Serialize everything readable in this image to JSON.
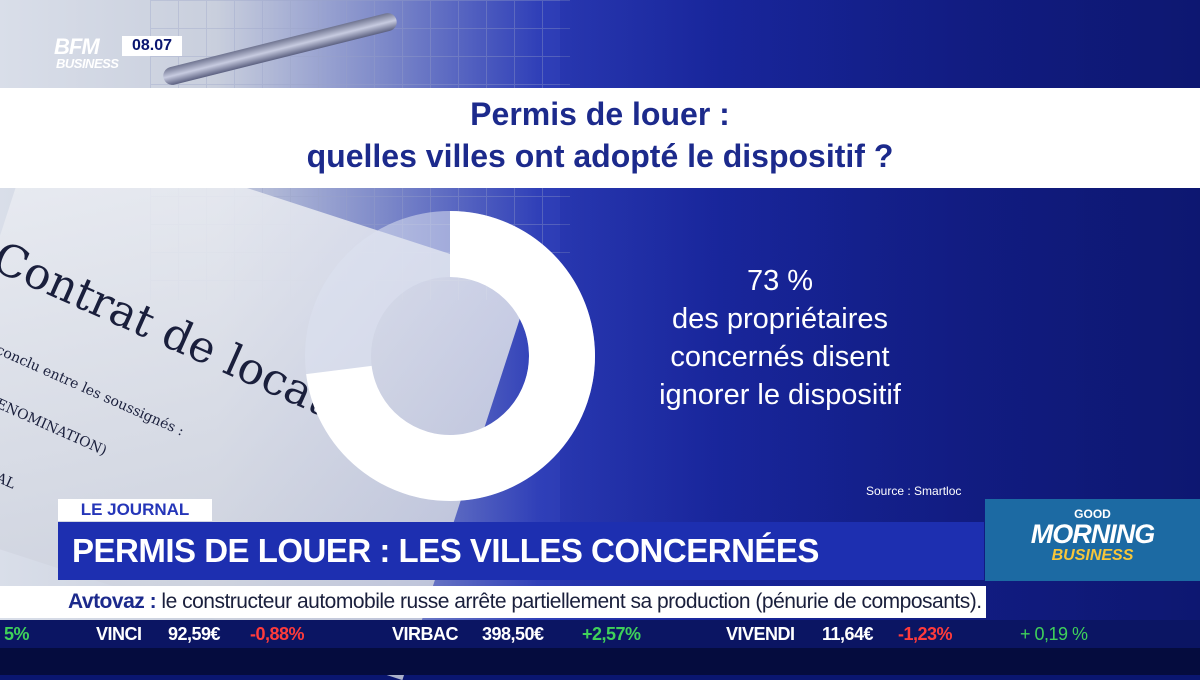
{
  "logo": {
    "brand": "BFM",
    "sub": "BUSINESS",
    "time": "08.07"
  },
  "title": {
    "line1": "Permis de louer :",
    "line2": "quelles villes ont adopté le dispositif ?"
  },
  "stat": {
    "percent": "73 %",
    "line1": "des propriétaires",
    "line2": "concernés disent",
    "line3": "ignorer le dispositif",
    "value": 73
  },
  "source": "Source : Smartloc",
  "background_text": {
    "contrat": "Contrat de location",
    "conclu": "conclu entre les soussignés :",
    "denomination": "ENOMINATION)",
    "al": "AL"
  },
  "tag": "LE JOURNAL",
  "headline": "PERMIS DE LOUER : LES VILLES CONCERNÉES",
  "show_logo": {
    "good": "GOOD",
    "morning": "MORNING",
    "business": "BUSINESS"
  },
  "ticker": {
    "bold": "Avtovaz :",
    "text": " le constructeur automobile russe arrête partiellement sa production (pénurie de composants)."
  },
  "market": [
    {
      "label": "5%",
      "change": "",
      "dir": "up"
    },
    {
      "label": "VINCI",
      "price": "92,59€",
      "change": "-0,88%",
      "dir": "down"
    },
    {
      "label": "VIRBAC",
      "price": "398,50€",
      "change": "+2,57%",
      "dir": "up"
    },
    {
      "label": "VIVENDI",
      "price": "11,64€",
      "change": "-1,23%",
      "dir": "down"
    },
    {
      "label": "",
      "price": "",
      "change": "+ 0,19 %",
      "dir": "up"
    }
  ],
  "colors": {
    "navy": "#1c2a8c",
    "headline_bg": "#1d2fb0",
    "up": "#3fd15a",
    "down": "#ff3b3b"
  }
}
